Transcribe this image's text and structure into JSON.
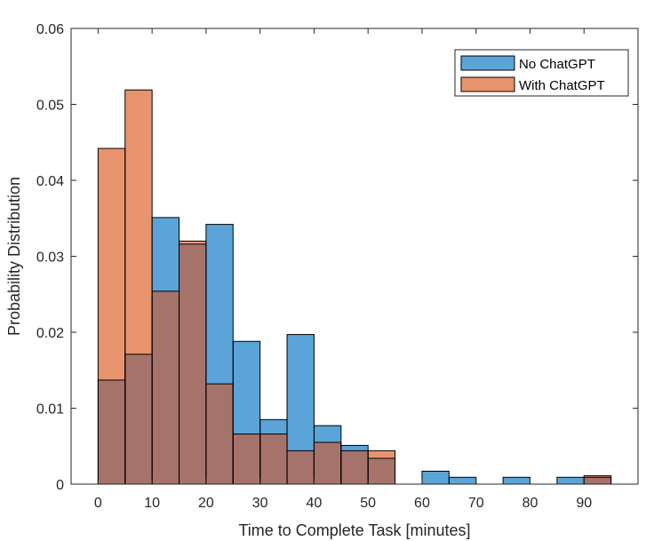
{
  "chart_data": {
    "type": "bar",
    "subtype": "overlapping-histogram",
    "title": "",
    "xlabel": "Time to Complete Task [minutes]",
    "ylabel": "Probability Distribution",
    "xlim": [
      -5,
      100
    ],
    "ylim": [
      0,
      0.06
    ],
    "x_ticks": [
      0,
      10,
      20,
      30,
      40,
      50,
      60,
      70,
      80,
      90
    ],
    "y_ticks": [
      0,
      0.01,
      0.02,
      0.03,
      0.04,
      0.05,
      0.06
    ],
    "y_tick_labels": [
      "0",
      "0.01",
      "0.02",
      "0.03",
      "0.04",
      "0.05",
      "0.06"
    ],
    "bin_width": 5,
    "bin_edges": [
      0,
      5,
      10,
      15,
      20,
      25,
      30,
      35,
      40,
      45,
      50,
      55,
      60,
      65,
      70,
      75,
      80,
      85,
      90,
      95
    ],
    "grid": false,
    "legend_position": "top-right",
    "series": [
      {
        "name": "No ChatGPT",
        "color": "#5BA4D8",
        "values": [
          0.0137,
          0.0171,
          0.0351,
          0.0316,
          0.0342,
          0.0188,
          0.0085,
          0.0197,
          0.0077,
          0.0051,
          0.0034,
          0,
          0.0017,
          0.0009,
          0,
          0.0009,
          0,
          0.0009,
          0.0009
        ]
      },
      {
        "name": "With ChatGPT",
        "color": "#E8946E",
        "values": [
          0.0442,
          0.0519,
          0.0254,
          0.032,
          0.0132,
          0.0066,
          0.0066,
          0.0044,
          0.0055,
          0.0044,
          0.0044,
          0,
          0,
          0,
          0,
          0,
          0,
          0,
          0.0011
        ]
      }
    ],
    "overlap_color": "#A6736A"
  }
}
